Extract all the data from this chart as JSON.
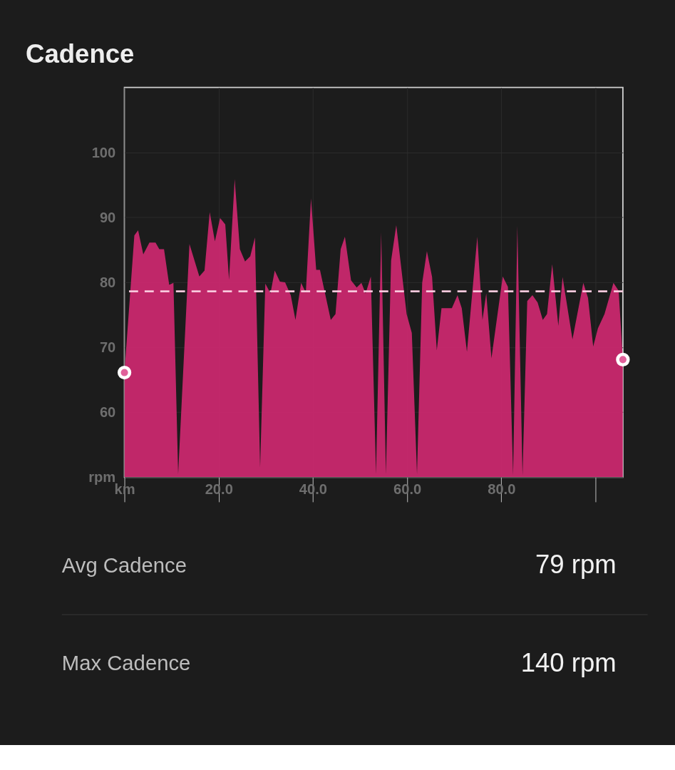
{
  "chart_data": {
    "type": "area",
    "title": "Cadence",
    "xlim": [
      0,
      105.8
    ],
    "ylim": [
      50,
      110
    ],
    "xticks": [
      {
        "value": 0,
        "label": "km"
      },
      {
        "value": 20,
        "label": "20.0"
      },
      {
        "value": 40,
        "label": "40.0"
      },
      {
        "value": 60,
        "label": "60.0"
      },
      {
        "value": 80,
        "label": "80.0"
      },
      {
        "value": 100,
        "label": null
      }
    ],
    "yticks": [
      {
        "value": 50,
        "label": "rpm"
      },
      60,
      70,
      80,
      90,
      100
    ],
    "grid": true,
    "series": [
      {
        "color": "#c9286e",
        "x": [
          0,
          2.1,
          2.9,
          4.0,
          5.3,
          6.6,
          7.4,
          8.4,
          9.5,
          10.4,
          11.4,
          13.8,
          15.9,
          17.0,
          18.1,
          19.2,
          20.3,
          21.4,
          22.2,
          23.4,
          24.5,
          25.6,
          26.7,
          27.7,
          28.8,
          29.9,
          31.0,
          31.9,
          33.0,
          34.1,
          35.3,
          36.3,
          37.5,
          38.5,
          39.6,
          40.7,
          41.5,
          43.8,
          44.8,
          45.9,
          46.8,
          48.1,
          49.3,
          50.3,
          51.2,
          52.3,
          53.4,
          54.5,
          55.5,
          56.6,
          57.7,
          59.9,
          61.0,
          62.1,
          63.2,
          64.2,
          65.3,
          66.3,
          67.3,
          69.5,
          70.7,
          71.6,
          72.7,
          74.9,
          76.0,
          76.8,
          77.9,
          80.3,
          81.4,
          82.5,
          83.4,
          84.5,
          85.5,
          86.6,
          87.7,
          88.8,
          89.7,
          90.8,
          92.1,
          93.0,
          95.1,
          97.4,
          98.4,
          99.5,
          100.5,
          101.9,
          103.8,
          104.9,
          105.8
        ],
        "values": [
          66.1,
          87.2,
          88.0,
          84.3,
          86.1,
          86.1,
          85.1,
          85.1,
          79.6,
          79.9,
          50.5,
          85.9,
          80.9,
          81.8,
          90.8,
          86.3,
          89.9,
          88.9,
          80.4,
          95.9,
          85.1,
          83.2,
          84.0,
          86.9,
          51.5,
          79.8,
          78.3,
          81.8,
          80.1,
          80.0,
          78.0,
          74.2,
          79.9,
          78.4,
          92.9,
          81.9,
          81.9,
          74.2,
          75.1,
          85.1,
          87.0,
          80.3,
          79.2,
          79.9,
          78.3,
          80.9,
          50.5,
          87.7,
          50.5,
          83.3,
          88.8,
          75.1,
          72.2,
          50.5,
          79.9,
          84.8,
          80.8,
          69.5,
          76.0,
          76.0,
          78.0,
          76.0,
          69.3,
          87.0,
          74.2,
          78.3,
          68.3,
          80.9,
          79.3,
          50.3,
          88.7,
          50.3,
          77.1,
          78.0,
          76.9,
          74.2,
          75.1,
          82.8,
          73.3,
          80.8,
          71.2,
          79.9,
          77.6,
          70.1,
          72.9,
          75.1,
          79.9,
          78.7,
          68.1
        ]
      },
      {
        "type": "scatter",
        "color": "#e0609a",
        "marker": "circle",
        "x": [
          0,
          105.8
        ],
        "values": [
          66.1,
          68.1
        ]
      }
    ],
    "ref_lines": [
      {
        "axis": "y",
        "value": 78.6,
        "color": "#f8c8dc",
        "line_style": "dashed"
      }
    ],
    "annotations": [
      "Avg Cadence",
      "79 rpm",
      "Max Cadence",
      "140 rpm"
    ]
  }
}
